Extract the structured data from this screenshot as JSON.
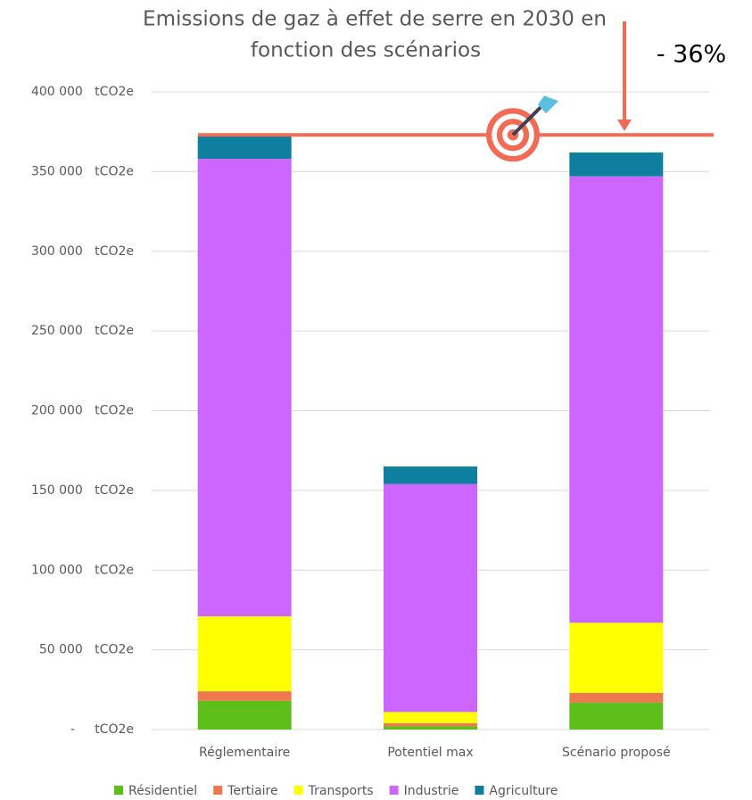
{
  "chart_data": {
    "type": "stacked_bar",
    "title": [
      "Emissions de gaz à effet de serre en 2030 en",
      "fonction des scénarios"
    ],
    "annotation": "- 36%",
    "categories": [
      "Réglementaire",
      "Potentiel max",
      "Scénario proposé"
    ],
    "series": [
      {
        "name": "Résidentiel",
        "color": "#5fbf1a",
        "values": [
          18000,
          2000,
          17000
        ]
      },
      {
        "name": "Tertiaire",
        "color": "#f07850",
        "values": [
          6000,
          2000,
          6000
        ]
      },
      {
        "name": "Transports",
        "color": "#ffff00",
        "values": [
          47000,
          7000,
          44000
        ]
      },
      {
        "name": "Industrie",
        "color": "#cc66ff",
        "values": [
          287000,
          143000,
          280000
        ]
      },
      {
        "name": "Agriculture",
        "color": "#0f7f9f",
        "values": [
          15000,
          11000,
          15000
        ]
      }
    ],
    "ylim": [
      0,
      400000
    ],
    "yticks": [
      {
        "value": 0,
        "label": "-     tCO2e"
      },
      {
        "value": 50000,
        "label": "50 000   tCO2e"
      },
      {
        "value": 100000,
        "label": "100 000   tCO2e"
      },
      {
        "value": 150000,
        "label": "150 000   tCO2e"
      },
      {
        "value": 200000,
        "label": "200 000   tCO2e"
      },
      {
        "value": 250000,
        "label": "250 000   tCO2e"
      },
      {
        "value": 300000,
        "label": "300 000   tCO2e"
      },
      {
        "value": 350000,
        "label": "350 000   tCO2e"
      },
      {
        "value": 400000,
        "label": "400 000   tCO2e"
      }
    ],
    "grid": true
  }
}
